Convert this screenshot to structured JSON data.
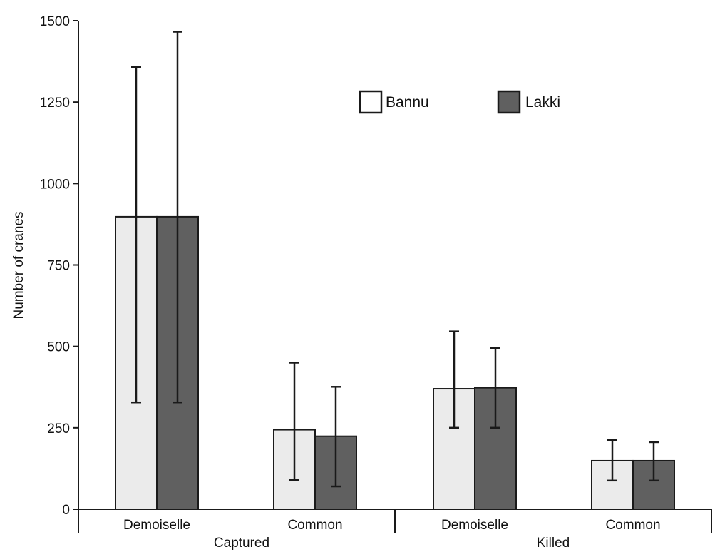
{
  "chart_data": {
    "type": "bar",
    "title": "",
    "xlabel": "",
    "ylabel": "Number of cranes",
    "ylim": [
      0,
      1500
    ],
    "yticks": [
      0,
      250,
      500,
      750,
      1000,
      1250,
      1500
    ],
    "categories": [
      "Demoiselle",
      "Common",
      "Demoiselle",
      "Common"
    ],
    "groups": [
      {
        "label": "Captured",
        "categories": [
          "Demoiselle",
          "Common"
        ]
      },
      {
        "label": "Killed",
        "categories": [
          "Demoiselle",
          "Common"
        ]
      }
    ],
    "series": [
      {
        "name": "Bannu",
        "color": "#ebebeb",
        "values": [
          898,
          244,
          370,
          149
        ],
        "error_low": [
          328,
          90,
          250,
          88
        ],
        "error_high": [
          1358,
          450,
          546,
          212
        ]
      },
      {
        "name": "Lakki",
        "color": "#606060",
        "values": [
          898,
          224,
          373,
          149
        ],
        "error_low": [
          328,
          70,
          250,
          88
        ],
        "error_high": [
          1466,
          376,
          495,
          206
        ]
      }
    ],
    "legend": {
      "placement": "top-center",
      "entries": [
        "Bannu",
        "Lakki"
      ]
    },
    "grid": false
  }
}
